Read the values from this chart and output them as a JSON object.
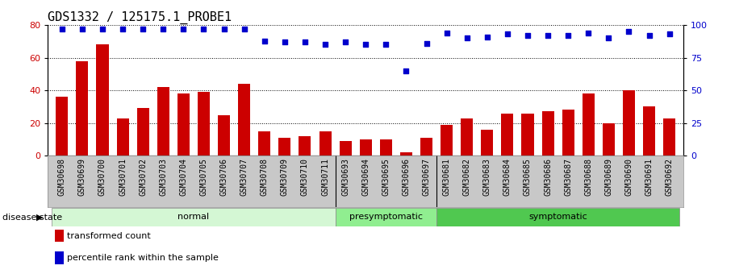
{
  "title": "GDS1332 / 125175.1_PROBE1",
  "categories": [
    "GSM30698",
    "GSM30699",
    "GSM30700",
    "GSM30701",
    "GSM30702",
    "GSM30703",
    "GSM30704",
    "GSM30705",
    "GSM30706",
    "GSM30707",
    "GSM30708",
    "GSM30709",
    "GSM30710",
    "GSM30711",
    "GSM30693",
    "GSM30694",
    "GSM30695",
    "GSM30696",
    "GSM30697",
    "GSM30681",
    "GSM30682",
    "GSM30683",
    "GSM30684",
    "GSM30685",
    "GSM30686",
    "GSM30687",
    "GSM30688",
    "GSM30689",
    "GSM30690",
    "GSM30691",
    "GSM30692"
  ],
  "bar_values": [
    36,
    58,
    68,
    23,
    29,
    42,
    38,
    39,
    25,
    44,
    15,
    11,
    12,
    15,
    9,
    10,
    10,
    2,
    11,
    19,
    23,
    16,
    26,
    26,
    27,
    28,
    38,
    20,
    40,
    30,
    23
  ],
  "percentile_values": [
    97,
    97,
    97,
    97,
    97,
    97,
    97,
    97,
    97,
    97,
    88,
    87,
    87,
    85,
    87,
    85,
    85,
    65,
    86,
    94,
    90,
    91,
    93,
    92,
    92,
    92,
    94,
    90,
    95,
    92,
    93
  ],
  "groups": [
    {
      "name": "normal",
      "start": 0,
      "end": 13,
      "color": "#d4f7d4"
    },
    {
      "name": "presymptomatic",
      "start": 14,
      "end": 18,
      "color": "#90ee90"
    },
    {
      "name": "symptomatic",
      "start": 19,
      "end": 30,
      "color": "#50c850"
    }
  ],
  "bar_color": "#cc0000",
  "scatter_color": "#0000cc",
  "left_ylim": [
    0,
    80
  ],
  "right_ylim": [
    0,
    100
  ],
  "left_yticks": [
    0,
    20,
    40,
    60,
    80
  ],
  "right_yticks": [
    0,
    25,
    50,
    75,
    100
  ],
  "disease_state_label": "disease state",
  "legend_bar_label": "transformed count",
  "legend_scatter_label": "percentile rank within the sample",
  "background_color": "#ffffff",
  "title_fontsize": 11,
  "tick_fontsize": 7,
  "label_fontsize": 8,
  "xtick_gray": "#c8c8c8",
  "group_border_color": "#888888"
}
